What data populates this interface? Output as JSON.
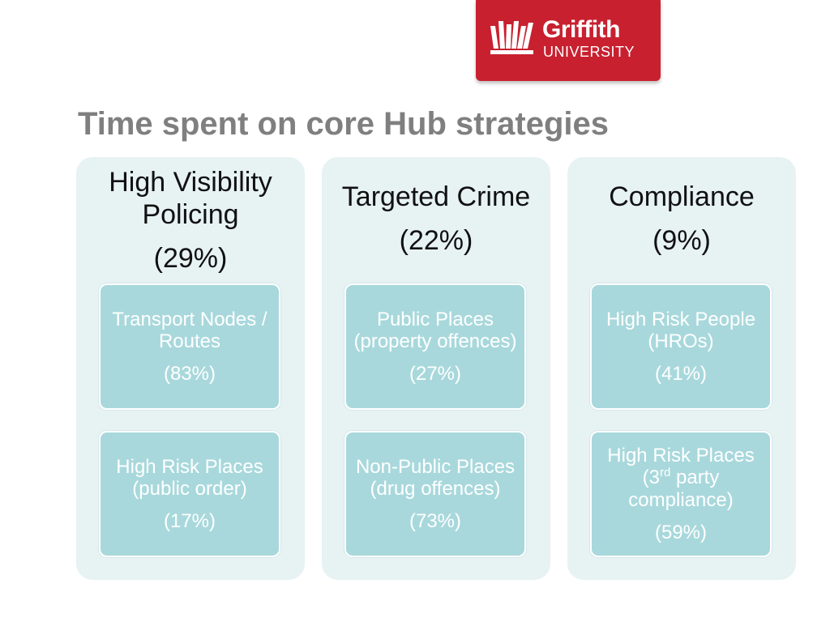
{
  "logo": {
    "name": "Griffith",
    "sub": "UNIVERSITY"
  },
  "title": "Time spent on core Hub strategies",
  "columns": [
    {
      "label": "High Visibility Policing",
      "percent": "(29%)",
      "boxes": [
        {
          "label": "Transport Nodes / Routes",
          "percent": "(83%)"
        },
        {
          "label": "High Risk Places (public order)",
          "percent": "(17%)"
        }
      ]
    },
    {
      "label": "Targeted Crime",
      "percent": "(22%)",
      "boxes": [
        {
          "label": "Public Places (property offences)",
          "percent": "(27%)"
        },
        {
          "label": "Non-Public Places (drug offences)",
          "percent": "(73%)"
        }
      ]
    },
    {
      "label": "Compliance",
      "percent": "(9%)",
      "boxes": [
        {
          "label": "High Risk People (HROs)",
          "percent": "(41%)"
        },
        {
          "label_before_sup": "High Risk Places (3",
          "label_sup": "rd",
          "label_after_sup": " party compliance)",
          "percent": "(59%)"
        }
      ]
    }
  ],
  "colors": {
    "brand_red": "#c8202f",
    "title_gray": "#7f7f7f",
    "column_bg": "#e7f2f3",
    "box_bg": "#a8d8dc"
  }
}
